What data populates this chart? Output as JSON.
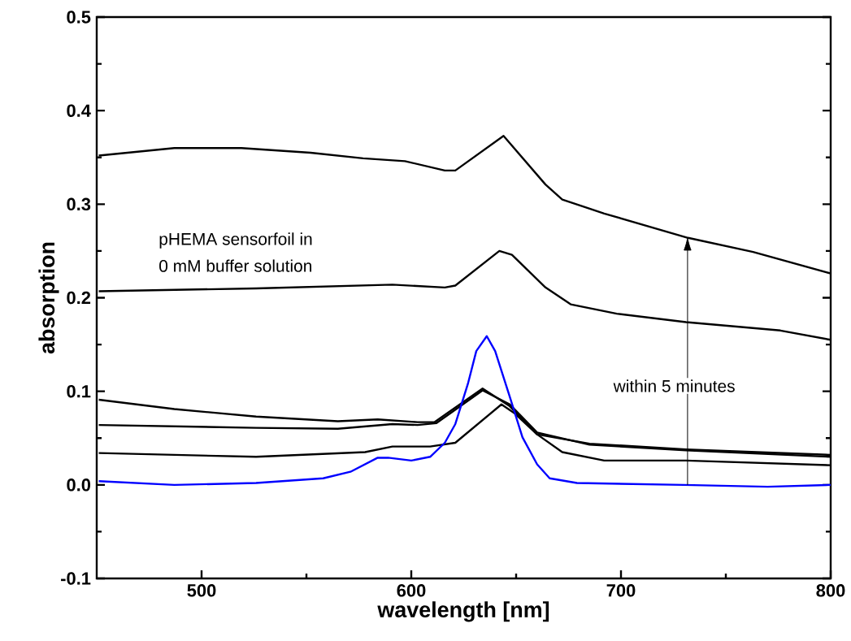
{
  "chart_data": {
    "type": "line",
    "xlabel": "wavelength [nm]",
    "ylabel": "absorption",
    "annotations": [
      "pHEMA sensorfoil in",
      "0 mM buffer solution",
      "within 5 minutes"
    ],
    "xlim": [
      450,
      800
    ],
    "ylim": [
      -0.1,
      0.5
    ],
    "xticks": [
      500,
      600,
      700,
      800
    ],
    "yticks": [
      {
        "value": -0.1,
        "label": "-0.1"
      },
      {
        "value": 0,
        "label": "0.0"
      },
      {
        "value": 0.1,
        "label": "0.1"
      },
      {
        "value": 0.2,
        "label": "0.2"
      },
      {
        "value": 0.3,
        "label": "0.3"
      },
      {
        "value": 0.4,
        "label": "0.4"
      },
      {
        "value": 0.5,
        "label": "0.5"
      }
    ],
    "grid": false,
    "marker": "none",
    "line_style": "solid",
    "series": [
      {
        "color": "#000000",
        "x": [
          451,
          487,
          519,
          552,
          577,
          597,
          616,
          621,
          644,
          664,
          672,
          692,
          732,
          763,
          800
        ],
        "values": [
          0.352,
          0.36,
          0.36,
          0.355,
          0.349,
          0.346,
          0.336,
          0.336,
          0.373,
          0.321,
          0.305,
          0.29,
          0.264,
          0.249,
          0.226
        ]
      },
      {
        "color": "#000000",
        "x": [
          451,
          526,
          591,
          616,
          621,
          642,
          648,
          664,
          676,
          698,
          731,
          776,
          800
        ],
        "values": [
          0.207,
          0.21,
          0.214,
          0.211,
          0.213,
          0.25,
          0.246,
          0.211,
          0.193,
          0.183,
          0.174,
          0.165,
          0.155
        ]
      },
      {
        "color": "#000000",
        "x": [
          451,
          487,
          526,
          565,
          584,
          603,
          611,
          634,
          647,
          660,
          685,
          731,
          800
        ],
        "values": [
          0.091,
          0.081,
          0.073,
          0.068,
          0.07,
          0.067,
          0.067,
          0.103,
          0.084,
          0.054,
          0.044,
          0.038,
          0.032
        ]
      },
      {
        "color": "#000000",
        "x": [
          451,
          526,
          565,
          591,
          603,
          612,
          634,
          647,
          660,
          685,
          731,
          800
        ],
        "values": [
          0.064,
          0.061,
          0.06,
          0.065,
          0.064,
          0.066,
          0.101,
          0.086,
          0.056,
          0.043,
          0.037,
          0.03
        ]
      },
      {
        "color": "#000000",
        "x": [
          451,
          526,
          578,
          591,
          609,
          621,
          643,
          649,
          660,
          672,
          692,
          731,
          800
        ],
        "values": [
          0.034,
          0.03,
          0.035,
          0.041,
          0.041,
          0.045,
          0.086,
          0.077,
          0.054,
          0.035,
          0.026,
          0.026,
          0.021
        ]
      },
      {
        "color": "#0000ff",
        "x": [
          451,
          487,
          526,
          558,
          571,
          584,
          589,
          600,
          609,
          616,
          621,
          627,
          631,
          636,
          640,
          647,
          653,
          660,
          666,
          679,
          730,
          770,
          800
        ],
        "values": [
          0.004,
          0.0,
          0.002,
          0.007,
          0.014,
          0.029,
          0.029,
          0.026,
          0.03,
          0.045,
          0.065,
          0.108,
          0.143,
          0.159,
          0.143,
          0.094,
          0.051,
          0.022,
          0.007,
          0.002,
          0.0,
          -0.002,
          0.0
        ]
      }
    ]
  }
}
